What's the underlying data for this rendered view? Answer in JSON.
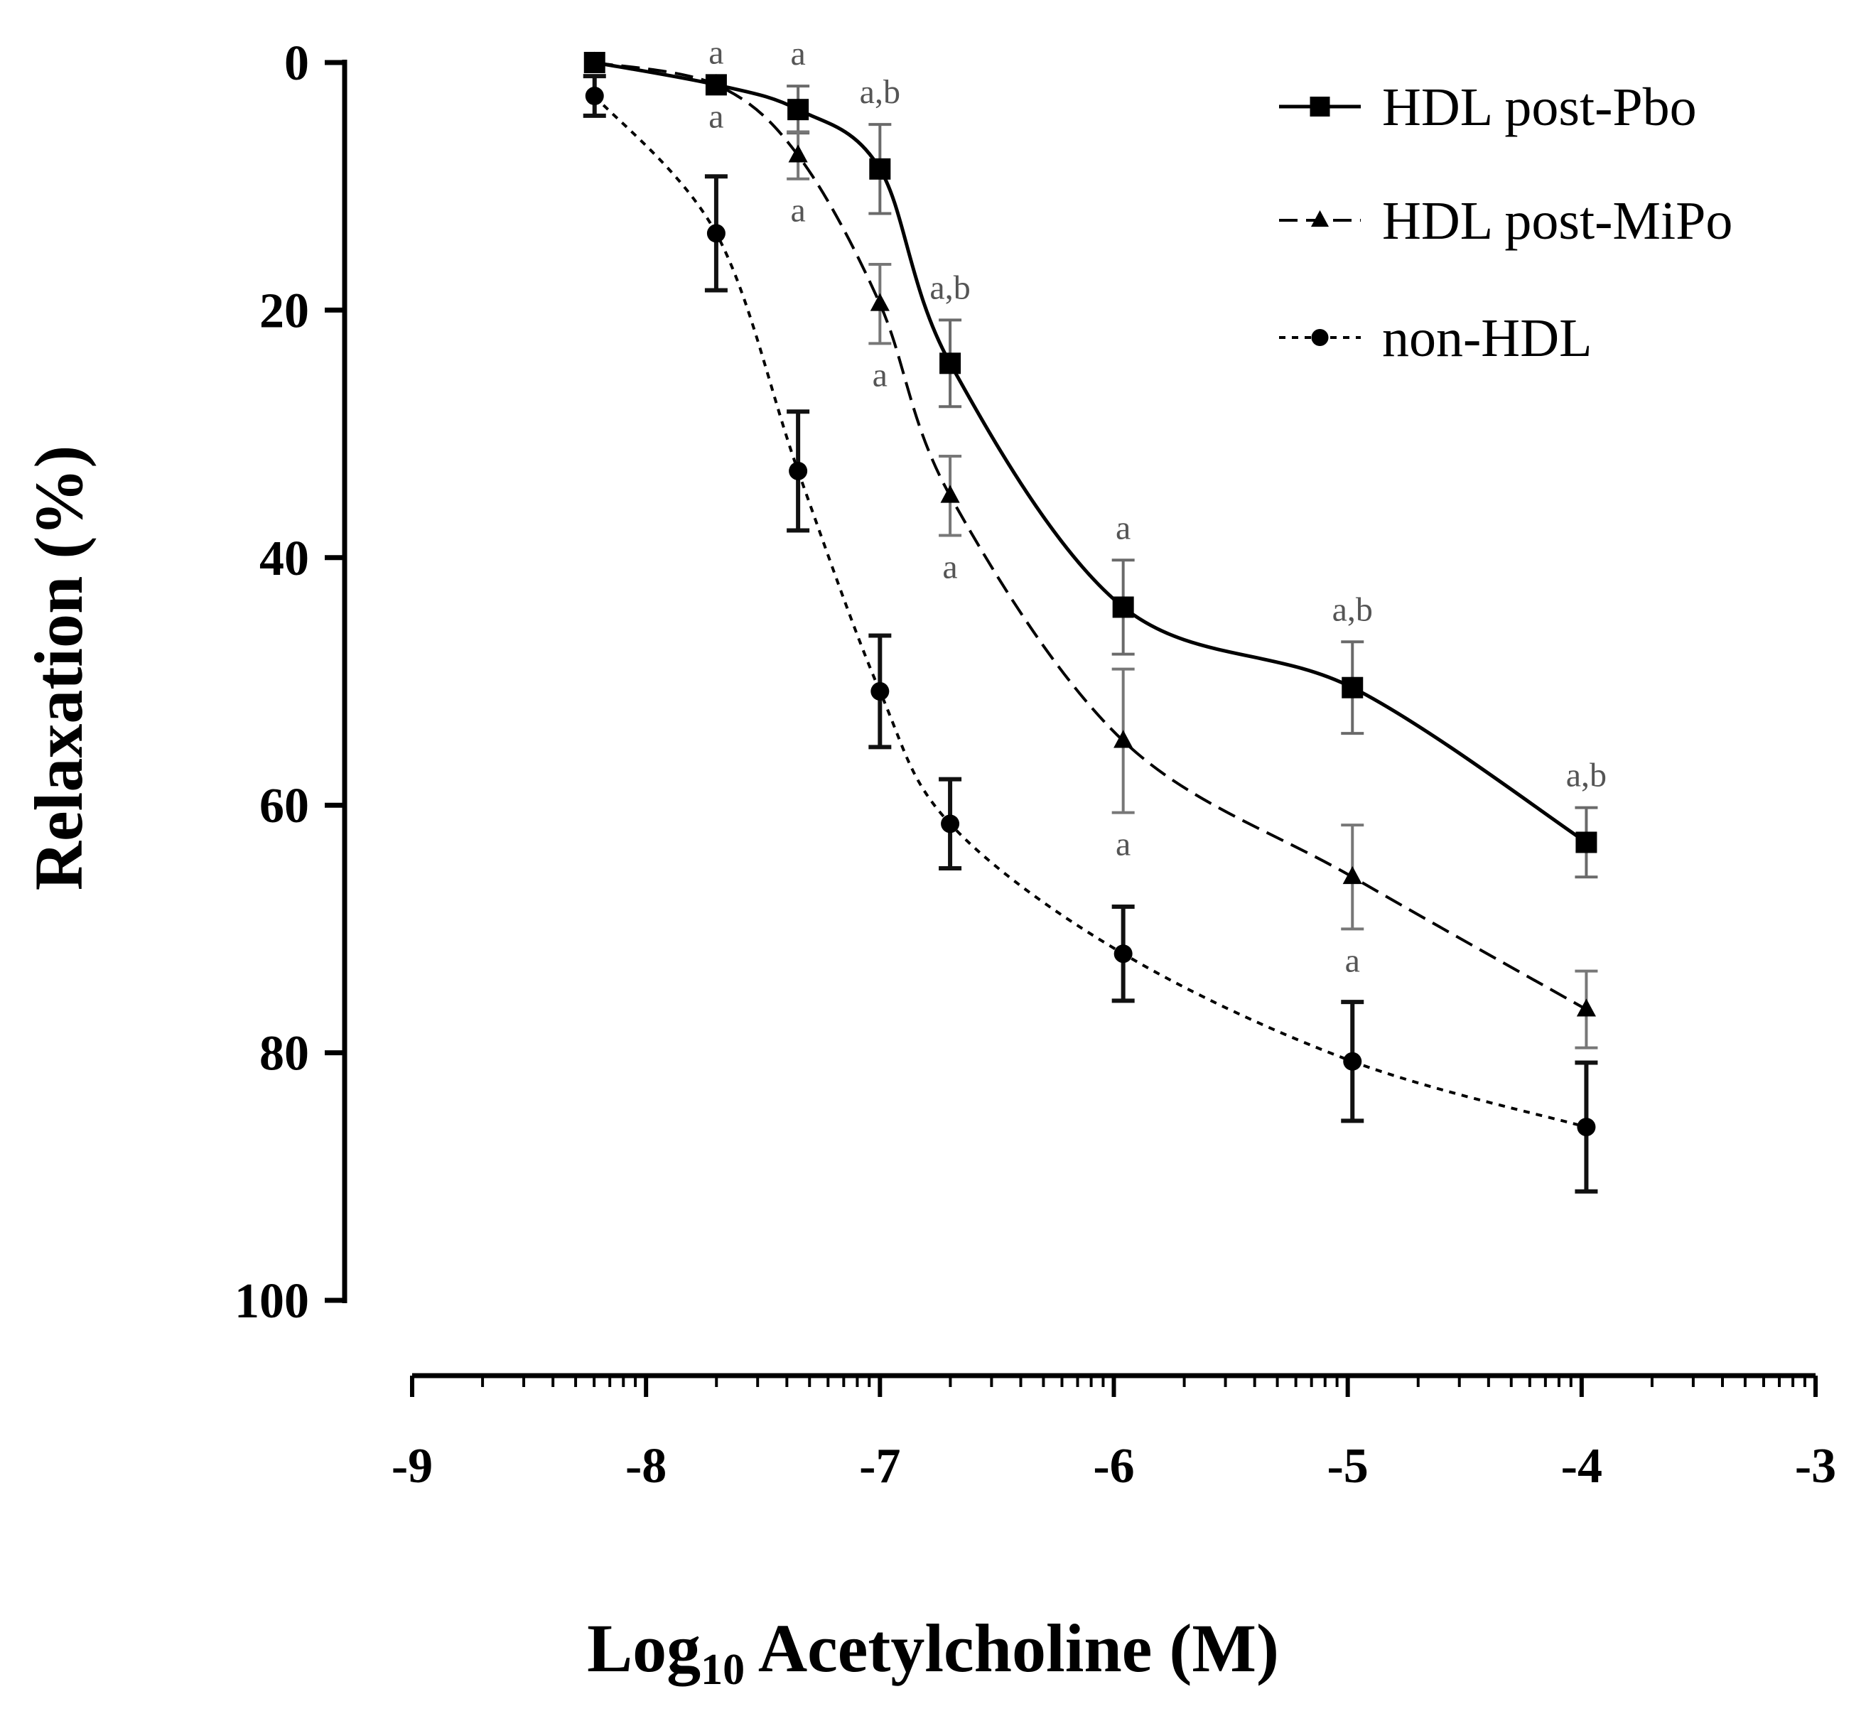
{
  "chart_data": {
    "type": "line",
    "ylabel": "Relaxation (%)",
    "xlabel": {
      "prefix": "Log",
      "subscript": "10",
      "suffix": " Acetylcholine (M)"
    },
    "xlim": [
      -9,
      -3
    ],
    "ylim": [
      0,
      100
    ],
    "y_inverted": true,
    "y_ticks": [
      "0",
      "20",
      "40",
      "60",
      "80",
      "100"
    ],
    "y_tick_values": [
      0,
      20,
      40,
      60,
      80,
      100
    ],
    "x_ticks": [
      "-9",
      "-8",
      "-7",
      "-6",
      "-5",
      "-4",
      "-3"
    ],
    "x_tick_values": [
      -9,
      -8,
      -7,
      -6,
      -5,
      -4,
      -3
    ],
    "x_axis_scale": "log-decade minor ticks",
    "legend_position": "top-right",
    "series": [
      {
        "name": "HDL post-Pbo",
        "marker": "square",
        "line_style": "solid",
        "color": "#000000",
        "x": [
          -8.22,
          -7.7,
          -7.35,
          -7.0,
          -6.7,
          -5.96,
          -4.98,
          -3.98
        ],
        "y": [
          0.0,
          1.8,
          3.8,
          8.6,
          24.3,
          44.0,
          50.5,
          63.0
        ],
        "err": [
          0.0,
          0.0,
          1.9,
          3.6,
          3.5,
          3.8,
          3.7,
          2.8
        ],
        "annotations": [
          "",
          "a",
          "a",
          "a,b",
          "a,b",
          "a",
          "a,b",
          "a,b"
        ]
      },
      {
        "name": "HDL post-MiPo",
        "marker": "triangle",
        "line_style": "dashed",
        "color": "#000000",
        "x": [
          -8.22,
          -7.7,
          -7.35,
          -7.0,
          -6.7,
          -5.96,
          -4.98,
          -3.98
        ],
        "y": [
          0.0,
          1.8,
          7.5,
          19.5,
          35.0,
          54.8,
          65.8,
          76.5
        ],
        "err": [
          0.0,
          0.0,
          1.9,
          3.2,
          3.2,
          5.8,
          4.2,
          3.1
        ],
        "annotations": [
          "",
          "a",
          "a",
          "a",
          "a",
          "a",
          "a",
          ""
        ]
      },
      {
        "name": "non-HDL",
        "marker": "circle",
        "line_style": "dotted",
        "color": "#000000",
        "x": [
          -8.22,
          -7.7,
          -7.35,
          -7.0,
          -6.7,
          -5.96,
          -4.98,
          -3.98
        ],
        "y": [
          2.7,
          13.8,
          33.0,
          50.8,
          61.5,
          72.0,
          80.7,
          86.0
        ],
        "err": [
          1.6,
          4.6,
          4.8,
          4.5,
          3.6,
          3.8,
          4.8,
          5.2
        ],
        "annotations": [
          "",
          "",
          "",
          "",
          "",
          "",
          "",
          ""
        ]
      }
    ]
  }
}
